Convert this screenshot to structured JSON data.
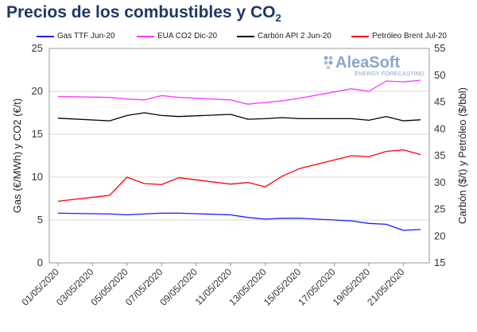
{
  "title": {
    "main": "Precios de los combustibles y CO",
    "sub": "2"
  },
  "logo": {
    "name": "AleaSoft",
    "tagline": "ENERGY FORECASTING"
  },
  "chart_data": {
    "type": "line",
    "title": "Precios de los combustibles y CO2",
    "ylabel_left": "Gas (€/MWh) y CO2 (€/t)",
    "ylabel_right": "Carbón ($/t) y Petróleo ($/bbl)",
    "ylim_left": [
      0,
      25
    ],
    "ylim_right": [
      15,
      55
    ],
    "yticks_left": [
      "0",
      "5",
      "10",
      "15",
      "20",
      "25"
    ],
    "yticks_right": [
      "15",
      "20",
      "25",
      "30",
      "35",
      "40",
      "45",
      "50",
      "55"
    ],
    "x": [
      "01/05/2020",
      "04/05/2020",
      "05/05/2020",
      "06/05/2020",
      "07/05/2020",
      "08/05/2020",
      "11/05/2020",
      "12/05/2020",
      "13/05/2020",
      "14/05/2020",
      "15/05/2020",
      "18/05/2020",
      "19/05/2020",
      "20/05/2020",
      "21/05/2020",
      "22/05/2020"
    ],
    "x_tick_labels": [
      "01/05/2020",
      "03/05/2020",
      "05/05/2020",
      "07/05/2020",
      "09/05/2020",
      "11/05/2020",
      "13/05/2020",
      "15/05/2020",
      "17/05/2020",
      "19/05/2020",
      "21/05/2020"
    ],
    "legend_position": "top",
    "grid": "horizontal",
    "series": [
      {
        "name": "Gas TTF Jun-20",
        "axis": "left",
        "color": "#1a1aff",
        "values": [
          5.8,
          5.7,
          5.6,
          5.7,
          5.8,
          5.8,
          5.6,
          5.3,
          5.1,
          5.2,
          5.2,
          4.9,
          4.6,
          4.5,
          3.8,
          3.9
        ]
      },
      {
        "name": "EUA CO2 Dic-20",
        "axis": "left",
        "color": "#ff33ff",
        "values": [
          19.4,
          19.3,
          19.1,
          19.0,
          19.5,
          19.3,
          19.0,
          18.5,
          18.7,
          18.9,
          19.2,
          20.3,
          20.0,
          21.2,
          21.1,
          21.3
        ]
      },
      {
        "name": "Carbón API 2 Jun-20",
        "axis": "right",
        "color": "#000000",
        "values": [
          42.0,
          41.5,
          42.5,
          43.0,
          42.5,
          42.3,
          42.7,
          41.8,
          41.9,
          42.1,
          41.9,
          41.9,
          41.6,
          42.3,
          41.5,
          41.7
        ]
      },
      {
        "name": "Petróleo Brent Jul-20",
        "axis": "right",
        "color": "#ff0000",
        "values": [
          26.5,
          27.6,
          31.0,
          29.8,
          29.6,
          30.9,
          29.7,
          30.0,
          29.2,
          31.2,
          32.6,
          35.0,
          34.8,
          35.8,
          36.1,
          35.2
        ]
      }
    ]
  }
}
